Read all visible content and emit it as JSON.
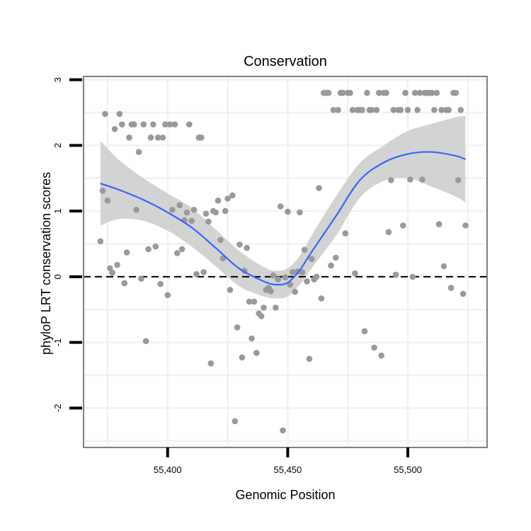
{
  "chart_data": {
    "type": "scatter",
    "title": "Conservation",
    "xlabel": "Genomic Position",
    "ylabel": "phyloP LRT conservation scores",
    "xlim": [
      55365,
      55533
    ],
    "ylim": [
      -2.6,
      3.05
    ],
    "xticks": [
      55400,
      55450,
      55500
    ],
    "xtick_labels": [
      "55,400",
      "55,450",
      "55,500"
    ],
    "yticks": [
      -2,
      -1,
      0,
      1,
      2,
      3
    ],
    "ytick_labels": [
      "-2",
      "-1",
      "0",
      "1",
      "2",
      "3"
    ],
    "grid": true,
    "reference_line": {
      "y": 0,
      "style": "dashed",
      "color": "#000000"
    },
    "colors": {
      "points": "#999999",
      "smooth_line": "#3366FF",
      "ribbon": "#D3D3D3",
      "panel_border": "#7f7f7f",
      "grid": "#f2f2f2"
    },
    "series": [
      {
        "name": "phyloP scores",
        "kind": "points",
        "x": [
          55372,
          55373,
          55374,
          55375,
          55376,
          55377,
          55378,
          55379,
          55380,
          55381,
          55382,
          55383,
          55384,
          55385,
          55386,
          55387,
          55388,
          55389,
          55390,
          55391,
          55392,
          55393,
          55394,
          55395,
          55396,
          55397,
          55398,
          55399,
          55400,
          55401,
          55402,
          55403,
          55404,
          55405,
          55406,
          55407,
          55408,
          55409,
          55410,
          55411,
          55412,
          55413,
          55414,
          55415,
          55416,
          55417,
          55418,
          55419,
          55420,
          55421,
          55422,
          55423,
          55424,
          55425,
          55426,
          55427,
          55428,
          55429,
          55430,
          55431,
          55432,
          55433,
          55434,
          55435,
          55436,
          55437,
          55438,
          55439,
          55440,
          55441,
          55442,
          55443,
          55444,
          55445,
          55446,
          55447,
          55448,
          55449,
          55450,
          55451,
          55452,
          55453,
          55454,
          55455,
          55456,
          55457,
          55458,
          55459,
          55460,
          55461,
          55462,
          55463,
          55464,
          55465,
          55466,
          55467,
          55468,
          55469,
          55470,
          55471,
          55472,
          55473,
          55474,
          55475,
          55476,
          55477,
          55478,
          55479,
          55480,
          55481,
          55482,
          55483,
          55484,
          55485,
          55486,
          55487,
          55488,
          55489,
          55490,
          55491,
          55492,
          55493,
          55494,
          55495,
          55496,
          55497,
          55498,
          55499,
          55500,
          55501,
          55502,
          55503,
          55504,
          55505,
          55506,
          55507,
          55508,
          55509,
          55510,
          55511,
          55512,
          55513,
          55514,
          55515,
          55516,
          55517,
          55518,
          55519,
          55520,
          55521,
          55522,
          55523,
          55524
        ],
        "y": [
          0.54,
          1.31,
          2.48,
          1.16,
          0.13,
          0.06,
          2.25,
          0.18,
          2.48,
          2.32,
          -0.1,
          0.37,
          2.12,
          2.32,
          2.32,
          1.02,
          1.9,
          -0.03,
          2.32,
          -0.98,
          0.42,
          2.12,
          2.32,
          0.46,
          2.12,
          -0.11,
          2.12,
          2.32,
          -0.28,
          2.32,
          1.02,
          2.32,
          0.36,
          1.09,
          0.42,
          0.86,
          0.98,
          2.32,
          0.85,
          1.02,
          0.04,
          2.12,
          2.12,
          0.07,
          0.96,
          0.84,
          -1.32,
          1.0,
          0.98,
          1.16,
          0.56,
          0.28,
          1.0,
          1.19,
          -0.2,
          1.24,
          -2.2,
          -0.77,
          0.49,
          -1.23,
          0.09,
          0.44,
          -0.38,
          -0.94,
          -0.38,
          -1.16,
          -0.56,
          -0.6,
          -0.47,
          -0.2,
          -0.17,
          -0.22,
          0.02,
          -0.47,
          -0.04,
          1.07,
          -2.34,
          -0.01,
          0.99,
          -0.12,
          0.07,
          -0.23,
          0.08,
          0.98,
          0.07,
          0.41,
          -0.07,
          -1.25,
          0.27,
          -0.04,
          0.0,
          1.35,
          -0.33,
          2.8,
          2.8,
          2.8,
          0.17,
          2.54,
          0.29,
          2.54,
          2.8,
          2.8,
          0.66,
          2.8,
          2.8,
          2.54,
          0.05,
          2.54,
          2.54,
          2.54,
          -0.83,
          2.8,
          2.54,
          2.54,
          -1.08,
          2.54,
          2.8,
          -1.2,
          2.8,
          2.8,
          0.68,
          1.47,
          2.54,
          0.03,
          2.54,
          2.54,
          0.78,
          2.8,
          2.54,
          1.48,
          0.0,
          2.8,
          2.54,
          2.8,
          1.48,
          2.8,
          2.8,
          2.8,
          2.8,
          2.54,
          2.8,
          0.8,
          2.54,
          0.16,
          2.54,
          2.54,
          -0.17,
          2.8,
          2.8,
          1.47,
          2.54,
          -0.26,
          0.78
        ]
      },
      {
        "name": "loess smooth",
        "kind": "line",
        "x": [
          55372,
          55380,
          55390,
          55400,
          55410,
          55420,
          55430,
          55440,
          55445,
          55450,
          55455,
          55460,
          55470,
          55480,
          55490,
          55500,
          55510,
          55520,
          55524
        ],
        "y": [
          1.42,
          1.32,
          1.17,
          0.98,
          0.75,
          0.44,
          0.12,
          -0.07,
          -0.12,
          -0.09,
          0.1,
          0.38,
          0.92,
          1.47,
          1.74,
          1.87,
          1.9,
          1.84,
          1.79
        ]
      },
      {
        "name": "confidence band",
        "kind": "ribbon",
        "x": [
          55372,
          55380,
          55390,
          55400,
          55410,
          55420,
          55430,
          55440,
          55445,
          55450,
          55455,
          55460,
          55470,
          55480,
          55490,
          55500,
          55510,
          55520,
          55524
        ],
        "y_lower": [
          0.78,
          0.88,
          0.85,
          0.7,
          0.46,
          0.16,
          -0.15,
          -0.3,
          -0.33,
          -0.3,
          -0.12,
          0.13,
          0.62,
          1.2,
          1.46,
          1.5,
          1.37,
          1.22,
          1.13
        ],
        "y_upper": [
          2.07,
          1.77,
          1.5,
          1.27,
          1.05,
          0.72,
          0.39,
          0.15,
          0.09,
          0.13,
          0.32,
          0.63,
          1.22,
          1.73,
          2.0,
          2.22,
          2.33,
          2.43,
          2.45
        ]
      }
    ]
  }
}
